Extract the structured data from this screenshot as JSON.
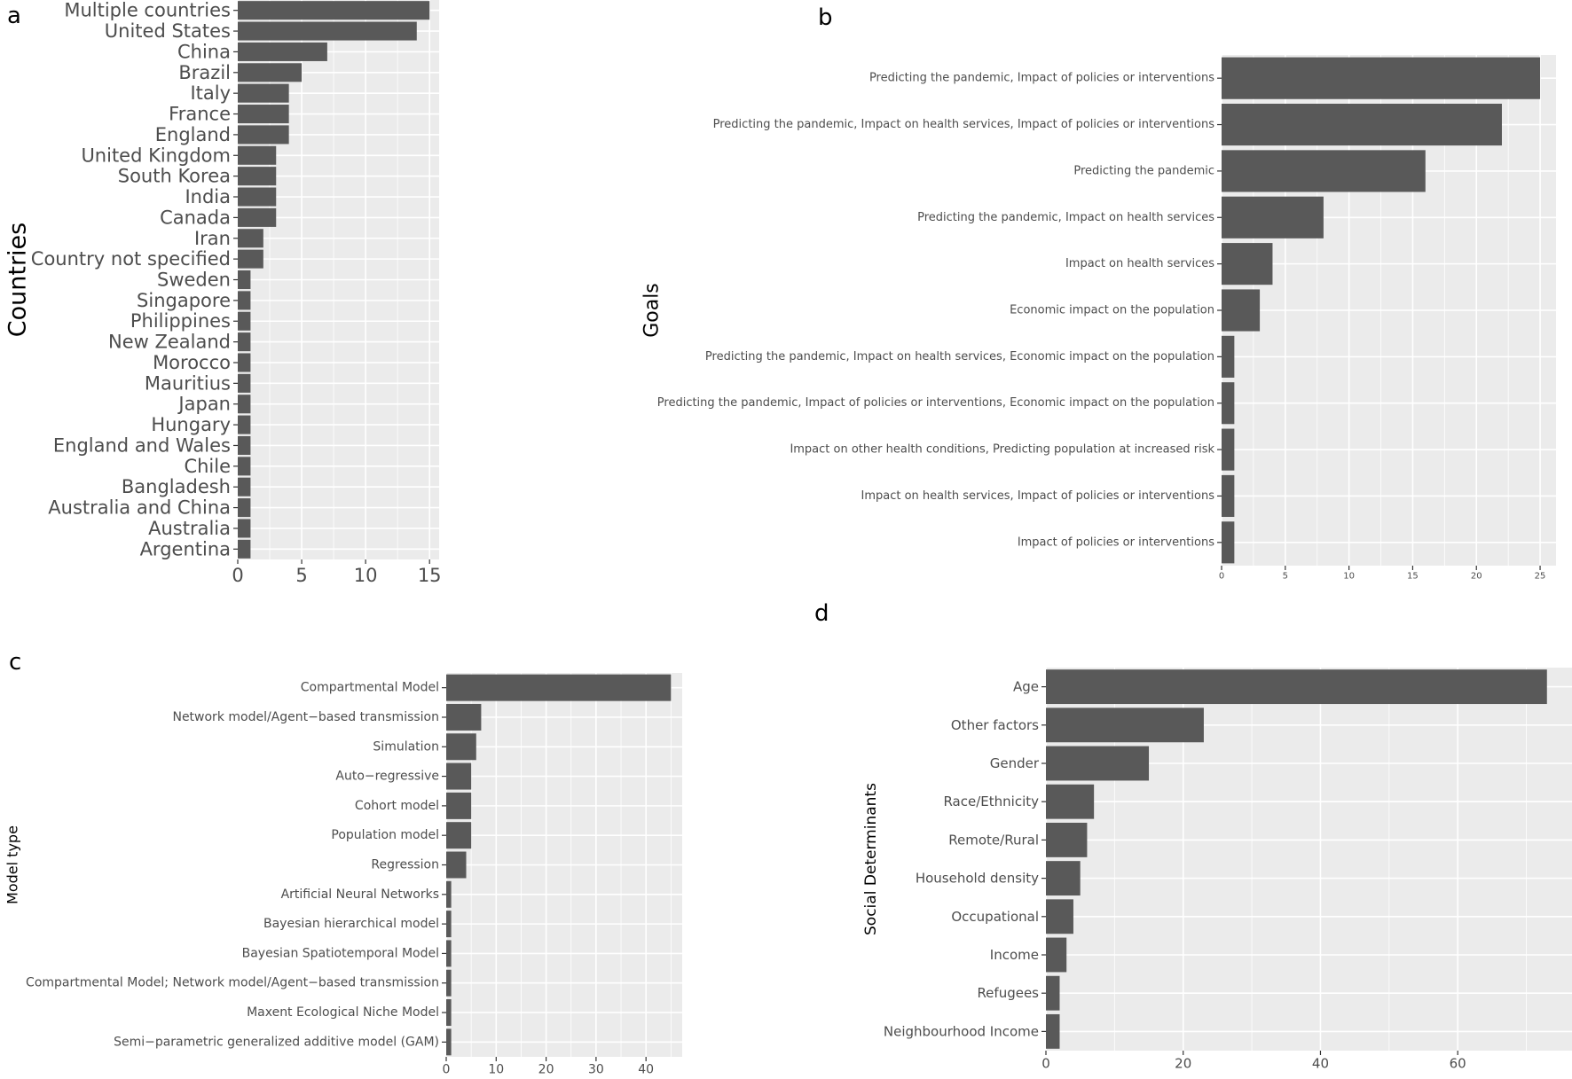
{
  "panel_letters": {
    "a": "a",
    "b": "b",
    "c": "c",
    "d": "d"
  },
  "colors": {
    "panel_bg": "#ebebeb",
    "grid": "#ffffff",
    "bar": "#595959",
    "text": "#4d4d4d"
  },
  "chart_data": [
    {
      "type": "bar",
      "orientation": "horizontal",
      "panel": "a",
      "ylabel": "Countries",
      "xlabel": "",
      "categories": [
        "Multiple countries",
        "United States",
        "China",
        "Brazil",
        "Italy",
        "France",
        "England",
        "United Kingdom",
        "South Korea",
        "India",
        "Canada",
        "Iran",
        "Country not specified",
        "Sweden",
        "Singapore",
        "Philippines",
        "New Zealand",
        "Morocco",
        "Mauritius",
        "Japan",
        "Hungary",
        "England and Wales",
        "Chile",
        "Bangladesh",
        "Australia and China",
        "Australia",
        "Argentina"
      ],
      "values": [
        15,
        14,
        7,
        5,
        4,
        4,
        4,
        3,
        3,
        3,
        3,
        2,
        2,
        1,
        1,
        1,
        1,
        1,
        1,
        1,
        1,
        1,
        1,
        1,
        1,
        1,
        1
      ],
      "xticks": [
        0,
        5,
        10,
        15
      ],
      "xlim": [
        0,
        15.75
      ],
      "grid": true
    },
    {
      "type": "bar",
      "orientation": "horizontal",
      "panel": "b",
      "ylabel": "Goals",
      "xlabel": "",
      "categories": [
        "Predicting the pandemic, Impact of policies or interventions",
        "Predicting the pandemic, Impact on health services, Impact of policies or interventions",
        "Predicting the pandemic",
        "Predicting the pandemic, Impact on health services",
        "Impact on health services",
        "Economic impact on the population",
        "Predicting the pandemic, Impact on health services, Economic impact on the population",
        "Predicting the pandemic, Impact of policies or interventions, Economic impact on the population",
        "Impact on other health conditions, Predicting population at increased risk",
        "Impact on health services, Impact of policies or interventions",
        "Impact of policies or interventions"
      ],
      "values": [
        25,
        22,
        16,
        8,
        4,
        3,
        1,
        1,
        1,
        1,
        1
      ],
      "xticks": [
        0,
        5,
        10,
        15,
        20,
        25
      ],
      "xlim": [
        0,
        26.25
      ],
      "grid": true
    },
    {
      "type": "bar",
      "orientation": "horizontal",
      "panel": "c",
      "ylabel": "Model type",
      "xlabel": "",
      "categories": [
        "Compartmental Model",
        "Network model/Agent−based transmission",
        "Simulation",
        "Auto−regressive",
        "Cohort model",
        "Population model",
        "Regression",
        "Artificial Neural Networks",
        "Bayesian hierarchical model",
        "Bayesian Spatiotemporal Model",
        "Compartmental Model; Network model/Agent−based transmission",
        "Maxent Ecological Niche Model",
        "Semi−parametric generalized additive model (GAM)"
      ],
      "values": [
        45,
        7,
        6,
        5,
        5,
        5,
        4,
        1,
        1,
        1,
        1,
        1,
        1
      ],
      "xticks": [
        0,
        10,
        20,
        30,
        40
      ],
      "xlim": [
        0,
        47.25
      ],
      "grid": true
    },
    {
      "type": "bar",
      "orientation": "horizontal",
      "panel": "d",
      "ylabel": "Social Determinants",
      "xlabel": "",
      "categories": [
        "Age",
        "Other factors",
        "Gender",
        "Race/Ethnicity",
        "Remote/Rural",
        "Household density",
        "Occupational",
        "Income",
        "Refugees",
        "Neighbourhood Income"
      ],
      "values": [
        73,
        23,
        15,
        7,
        6,
        5,
        4,
        3,
        2,
        2
      ],
      "xticks": [
        0,
        20,
        40,
        60
      ],
      "xlim": [
        0,
        76.65
      ],
      "grid": true
    }
  ]
}
